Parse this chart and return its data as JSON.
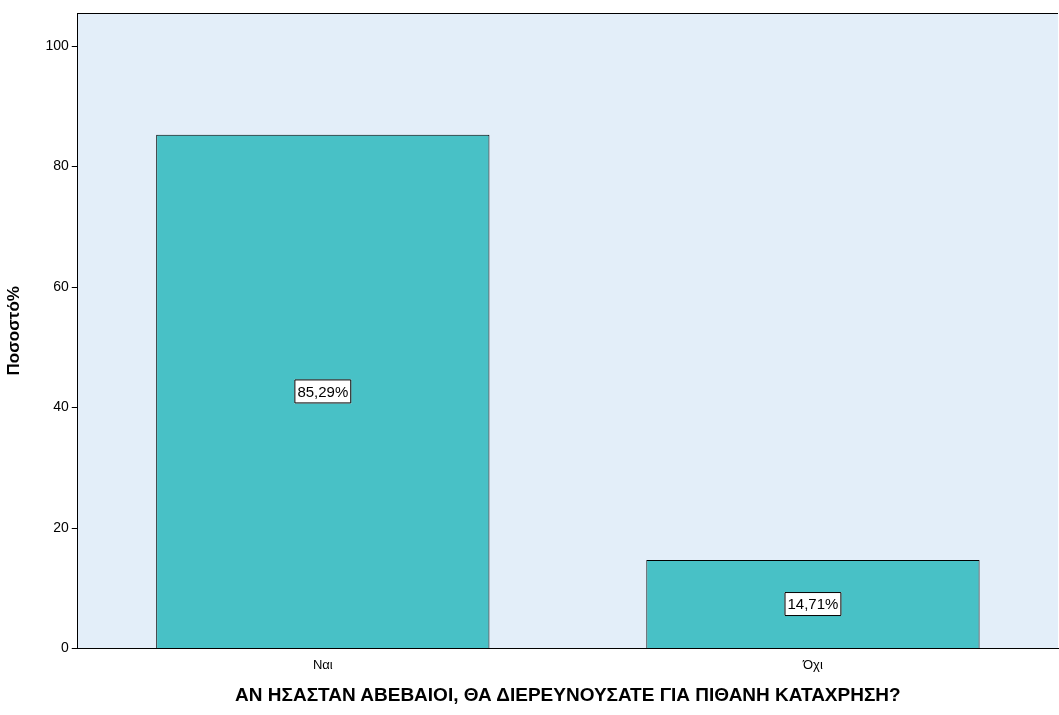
{
  "chart_data": {
    "type": "bar",
    "xlabel": "ΑΝ ΗΣΑΣΤΑΝ ΑΒΕΒΑΙΟΙ, ΘΑ ΔΙΕΡΕΥΝΟΥΣΑΤΕ ΓΙΑ ΠΙΘΑΝΗ ΚΑΤΑΧΡΗΣΗ?",
    "ylabel": "Ποσοστό%",
    "categories": [
      "Ναι",
      "Όχι"
    ],
    "values": [
      85.29,
      14.71
    ],
    "value_labels": [
      "85,29%",
      "14,71%"
    ],
    "color": "#48c1c6",
    "ylim": [
      0,
      105.5
    ],
    "yticks": [
      0,
      20,
      40,
      60,
      80,
      100
    ],
    "grid": false,
    "legend": false
  }
}
